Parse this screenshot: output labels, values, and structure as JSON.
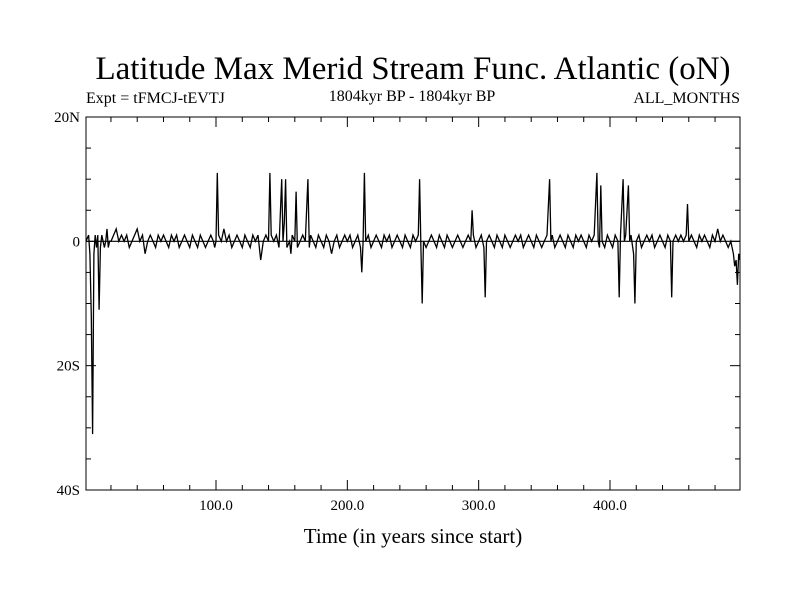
{
  "chart_data": {
    "type": "line",
    "title": "Latitude Max Merid Stream Func. Atlantic (oN)",
    "subtitle_left": "Expt = tFMCJ-tEVTJ",
    "subtitle_center": "1804kyr BP - 1804kyr BP",
    "subtitle_right": "ALL_MONTHS",
    "xlabel": "Time (in years since start)",
    "ylabel": "",
    "xlim": [
      1,
      499
    ],
    "ylim": [
      -40,
      20
    ],
    "x_ticks": [
      {
        "value": 100,
        "label": "100.0"
      },
      {
        "value": 200,
        "label": "200.0"
      },
      {
        "value": 300,
        "label": "300.0"
      },
      {
        "value": 400,
        "label": "400.0"
      }
    ],
    "y_ticks": [
      {
        "value": 20,
        "label": "20N"
      },
      {
        "value": 0,
        "label": "0"
      },
      {
        "value": -20,
        "label": "20S"
      },
      {
        "value": -40,
        "label": "40S"
      }
    ],
    "reference_line": 0,
    "grid": false,
    "series": [
      {
        "points": [
          [
            1,
            0
          ],
          [
            3,
            1
          ],
          [
            4,
            -2
          ],
          [
            5,
            -12
          ],
          [
            6,
            -31
          ],
          [
            7,
            -2
          ],
          [
            8,
            1
          ],
          [
            9,
            -1
          ],
          [
            10,
            1
          ],
          [
            11,
            -11
          ],
          [
            12,
            -1
          ],
          [
            13,
            1
          ],
          [
            14,
            0
          ],
          [
            15,
            -1
          ],
          [
            16,
            0
          ],
          [
            17,
            2
          ],
          [
            18,
            -1
          ],
          [
            19,
            0
          ],
          [
            20,
            0
          ],
          [
            22,
            1
          ],
          [
            24,
            2
          ],
          [
            26,
            0
          ],
          [
            28,
            1
          ],
          [
            30,
            0
          ],
          [
            32,
            1
          ],
          [
            34,
            -1
          ],
          [
            36,
            0
          ],
          [
            38,
            1
          ],
          [
            40,
            2
          ],
          [
            42,
            0
          ],
          [
            44,
            1
          ],
          [
            46,
            -2
          ],
          [
            48,
            0
          ],
          [
            50,
            1
          ],
          [
            52,
            0
          ],
          [
            54,
            -1
          ],
          [
            56,
            1
          ],
          [
            58,
            0
          ],
          [
            60,
            1
          ],
          [
            62,
            0
          ],
          [
            64,
            -1
          ],
          [
            66,
            1
          ],
          [
            68,
            0
          ],
          [
            70,
            1
          ],
          [
            72,
            -1
          ],
          [
            74,
            0
          ],
          [
            76,
            1
          ],
          [
            78,
            0
          ],
          [
            80,
            -1
          ],
          [
            82,
            1
          ],
          [
            84,
            0
          ],
          [
            86,
            -1
          ],
          [
            88,
            1
          ],
          [
            90,
            0
          ],
          [
            92,
            -1
          ],
          [
            94,
            0
          ],
          [
            96,
            1
          ],
          [
            98,
            0
          ],
          [
            99,
            -1
          ],
          [
            100,
            0
          ],
          [
            101,
            11
          ],
          [
            102,
            1
          ],
          [
            104,
            0
          ],
          [
            106,
            2
          ],
          [
            108,
            0
          ],
          [
            110,
            1
          ],
          [
            112,
            -1
          ],
          [
            114,
            0
          ],
          [
            116,
            1
          ],
          [
            118,
            0
          ],
          [
            120,
            -1
          ],
          [
            122,
            1
          ],
          [
            124,
            0
          ],
          [
            126,
            -1
          ],
          [
            128,
            1
          ],
          [
            130,
            0
          ],
          [
            132,
            1
          ],
          [
            134,
            -3
          ],
          [
            136,
            0
          ],
          [
            138,
            1
          ],
          [
            140,
            0
          ],
          [
            141,
            11
          ],
          [
            142,
            1
          ],
          [
            144,
            0
          ],
          [
            146,
            1
          ],
          [
            148,
            -1
          ],
          [
            150,
            10
          ],
          [
            151,
            0
          ],
          [
            152,
            3
          ],
          [
            153,
            10
          ],
          [
            154,
            -1
          ],
          [
            156,
            0
          ],
          [
            157,
            -2
          ],
          [
            158,
            1
          ],
          [
            160,
            0
          ],
          [
            161,
            8
          ],
          [
            162,
            -1
          ],
          [
            164,
            0
          ],
          [
            166,
            1
          ],
          [
            168,
            0
          ],
          [
            170,
            10
          ],
          [
            171,
            -1
          ],
          [
            172,
            1
          ],
          [
            174,
            0
          ],
          [
            176,
            -1
          ],
          [
            178,
            1
          ],
          [
            180,
            0
          ],
          [
            182,
            -1
          ],
          [
            184,
            1
          ],
          [
            186,
            0
          ],
          [
            188,
            -2
          ],
          [
            190,
            0
          ],
          [
            192,
            1
          ],
          [
            194,
            -1
          ],
          [
            196,
            0
          ],
          [
            198,
            1
          ],
          [
            200,
            0
          ],
          [
            202,
            1
          ],
          [
            204,
            -1
          ],
          [
            206,
            0
          ],
          [
            208,
            1
          ],
          [
            210,
            -1
          ],
          [
            211,
            -5
          ],
          [
            212,
            0
          ],
          [
            213,
            11
          ],
          [
            214,
            0
          ],
          [
            216,
            1
          ],
          [
            218,
            -1
          ],
          [
            220,
            0
          ],
          [
            222,
            1
          ],
          [
            224,
            0
          ],
          [
            226,
            -1
          ],
          [
            228,
            1
          ],
          [
            230,
            0
          ],
          [
            232,
            1
          ],
          [
            234,
            -1
          ],
          [
            236,
            0
          ],
          [
            238,
            1
          ],
          [
            240,
            0
          ],
          [
            242,
            -1
          ],
          [
            244,
            1
          ],
          [
            246,
            0
          ],
          [
            248,
            -1
          ],
          [
            250,
            1
          ],
          [
            252,
            0
          ],
          [
            254,
            1
          ],
          [
            255,
            10
          ],
          [
            256,
            -1
          ],
          [
            257,
            -10
          ],
          [
            258,
            0
          ],
          [
            260,
            -1
          ],
          [
            262,
            0
          ],
          [
            264,
            1
          ],
          [
            266,
            0
          ],
          [
            268,
            -1
          ],
          [
            270,
            1
          ],
          [
            272,
            0
          ],
          [
            274,
            -1
          ],
          [
            276,
            1
          ],
          [
            278,
            0
          ],
          [
            280,
            -1
          ],
          [
            282,
            0
          ],
          [
            284,
            1
          ],
          [
            286,
            0
          ],
          [
            288,
            -1
          ],
          [
            290,
            0
          ],
          [
            292,
            1
          ],
          [
            294,
            0
          ],
          [
            295,
            5
          ],
          [
            296,
            1
          ],
          [
            298,
            -1
          ],
          [
            300,
            0
          ],
          [
            302,
            1
          ],
          [
            304,
            -1
          ],
          [
            305,
            -9
          ],
          [
            306,
            0
          ],
          [
            308,
            1
          ],
          [
            310,
            0
          ],
          [
            312,
            -1
          ],
          [
            314,
            1
          ],
          [
            316,
            0
          ],
          [
            318,
            -1
          ],
          [
            320,
            1
          ],
          [
            322,
            0
          ],
          [
            324,
            -1
          ],
          [
            326,
            0
          ],
          [
            328,
            1
          ],
          [
            330,
            0
          ],
          [
            332,
            1
          ],
          [
            334,
            -1
          ],
          [
            336,
            0
          ],
          [
            338,
            1
          ],
          [
            340,
            0
          ],
          [
            342,
            -1
          ],
          [
            344,
            1
          ],
          [
            346,
            0
          ],
          [
            348,
            -1
          ],
          [
            350,
            0
          ],
          [
            352,
            1
          ],
          [
            354,
            10
          ],
          [
            355,
            0
          ],
          [
            356,
            1
          ],
          [
            358,
            -1
          ],
          [
            360,
            0
          ],
          [
            362,
            1
          ],
          [
            364,
            0
          ],
          [
            366,
            -1
          ],
          [
            368,
            1
          ],
          [
            370,
            0
          ],
          [
            372,
            -1
          ],
          [
            374,
            1
          ],
          [
            376,
            0
          ],
          [
            378,
            1
          ],
          [
            380,
            0
          ],
          [
            382,
            -1
          ],
          [
            384,
            1
          ],
          [
            386,
            0
          ],
          [
            388,
            1
          ],
          [
            390,
            11
          ],
          [
            391,
            0
          ],
          [
            392,
            -1
          ],
          [
            393,
            9
          ],
          [
            394,
            0
          ],
          [
            396,
            -1
          ],
          [
            398,
            1
          ],
          [
            400,
            0
          ],
          [
            402,
            -1
          ],
          [
            404,
            1
          ],
          [
            406,
            0
          ],
          [
            407,
            -9
          ],
          [
            408,
            1
          ],
          [
            410,
            10
          ],
          [
            411,
            0
          ],
          [
            412,
            1
          ],
          [
            414,
            9
          ],
          [
            415,
            0
          ],
          [
            416,
            1
          ],
          [
            418,
            -2
          ],
          [
            419,
            -10
          ],
          [
            420,
            0
          ],
          [
            422,
            1
          ],
          [
            424,
            -1
          ],
          [
            426,
            0
          ],
          [
            428,
            1
          ],
          [
            430,
            0
          ],
          [
            432,
            1
          ],
          [
            434,
            -1
          ],
          [
            436,
            0
          ],
          [
            438,
            1
          ],
          [
            440,
            0
          ],
          [
            442,
            -1
          ],
          [
            444,
            1
          ],
          [
            446,
            0
          ],
          [
            447,
            -9
          ],
          [
            448,
            0
          ],
          [
            450,
            1
          ],
          [
            452,
            0
          ],
          [
            454,
            1
          ],
          [
            456,
            0
          ],
          [
            458,
            1
          ],
          [
            459,
            6
          ],
          [
            460,
            0
          ],
          [
            462,
            1
          ],
          [
            464,
            0
          ],
          [
            466,
            -1
          ],
          [
            468,
            1
          ],
          [
            470,
            0
          ],
          [
            472,
            1
          ],
          [
            474,
            0
          ],
          [
            476,
            -1
          ],
          [
            478,
            1
          ],
          [
            480,
            0
          ],
          [
            482,
            2
          ],
          [
            484,
            0
          ],
          [
            486,
            1
          ],
          [
            488,
            0
          ],
          [
            490,
            -1
          ],
          [
            492,
            0
          ],
          [
            494,
            -2
          ],
          [
            495,
            -4
          ],
          [
            496,
            -3
          ],
          [
            497,
            -7
          ],
          [
            498,
            -2
          ],
          [
            499,
            -3
          ]
        ]
      }
    ]
  }
}
